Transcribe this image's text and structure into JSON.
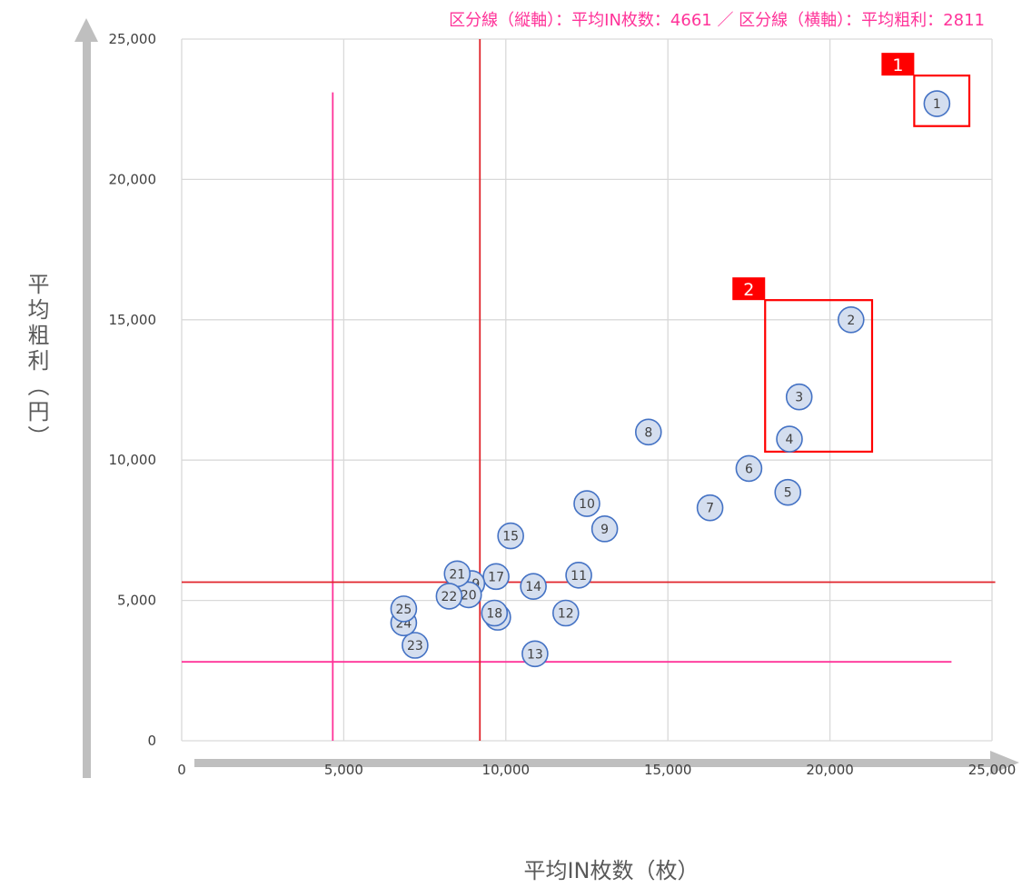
{
  "chart_data": {
    "type": "scatter",
    "note": "区分線（縦軸）：平均IN枚数：4661 ／ 区分線（横軸）：平均粗利：2811",
    "xlabel": "平均IN枚数（枚）",
    "ylabel": "平均粗利（円）",
    "xlim": [
      0,
      25000
    ],
    "ylim": [
      0,
      25000
    ],
    "x_ticks": [
      "0",
      "5,000",
      "10,000",
      "15,000",
      "20,000",
      "25,000"
    ],
    "y_ticks": [
      "0",
      "5,000",
      "10,000",
      "15,000",
      "20,000",
      "25,000"
    ],
    "grid": true,
    "points": [
      {
        "id": "1",
        "x": 23300,
        "y": 22700
      },
      {
        "id": "2",
        "x": 20650,
        "y": 15000
      },
      {
        "id": "3",
        "x": 19050,
        "y": 12250
      },
      {
        "id": "4",
        "x": 18750,
        "y": 10750
      },
      {
        "id": "5",
        "x": 18700,
        "y": 8850
      },
      {
        "id": "6",
        "x": 17500,
        "y": 9700
      },
      {
        "id": "7",
        "x": 16300,
        "y": 8300
      },
      {
        "id": "8",
        "x": 14400,
        "y": 11000
      },
      {
        "id": "9",
        "x": 13050,
        "y": 7550
      },
      {
        "id": "10",
        "x": 12500,
        "y": 8450
      },
      {
        "id": "11",
        "x": 12250,
        "y": 5900
      },
      {
        "id": "12",
        "x": 11850,
        "y": 4550
      },
      {
        "id": "13",
        "x": 10900,
        "y": 3100
      },
      {
        "id": "14",
        "x": 10850,
        "y": 5500
      },
      {
        "id": "15",
        "x": 10150,
        "y": 7300
      },
      {
        "id": "16",
        "x": 9750,
        "y": 4400
      },
      {
        "id": "17",
        "x": 9700,
        "y": 5850
      },
      {
        "id": "18",
        "x": 9650,
        "y": 4550
      },
      {
        "id": "19",
        "x": 8950,
        "y": 5600
      },
      {
        "id": "20",
        "x": 8850,
        "y": 5200
      },
      {
        "id": "21",
        "x": 8500,
        "y": 5950
      },
      {
        "id": "22",
        "x": 8250,
        "y": 5150
      },
      {
        "id": "23",
        "x": 7200,
        "y": 3400
      },
      {
        "id": "24",
        "x": 6850,
        "y": 4200
      },
      {
        "id": "25",
        "x": 6850,
        "y": 4700
      }
    ],
    "reference_lines": [
      {
        "orientation": "vertical",
        "x": 4661,
        "y_range": [
          0,
          23100
        ],
        "color": "#ff3399"
      },
      {
        "orientation": "horizontal",
        "y": 2811,
        "x_range": [
          0,
          23750
        ],
        "color": "#ff3399"
      },
      {
        "orientation": "vertical",
        "x": 9200,
        "y_range": [
          0,
          25000
        ],
        "color": "#e0242b"
      },
      {
        "orientation": "horizontal",
        "y": 5650,
        "x_range": [
          0,
          25100
        ],
        "color": "#e0242b"
      }
    ],
    "highlight_boxes": [
      {
        "label": "1",
        "x_range": [
          22600,
          24300
        ],
        "y_range": [
          21900,
          23700
        ],
        "color": "#ff0000"
      },
      {
        "label": "2",
        "x_range": [
          18000,
          21300
        ],
        "y_range": [
          10300,
          15700
        ],
        "color": "#ff0000"
      }
    ],
    "colors": {
      "marker_fill": "#d4deef",
      "marker_stroke": "#4472c4",
      "grid": "#d9d9d9",
      "axis_arrow": "#bfbfbf"
    }
  }
}
